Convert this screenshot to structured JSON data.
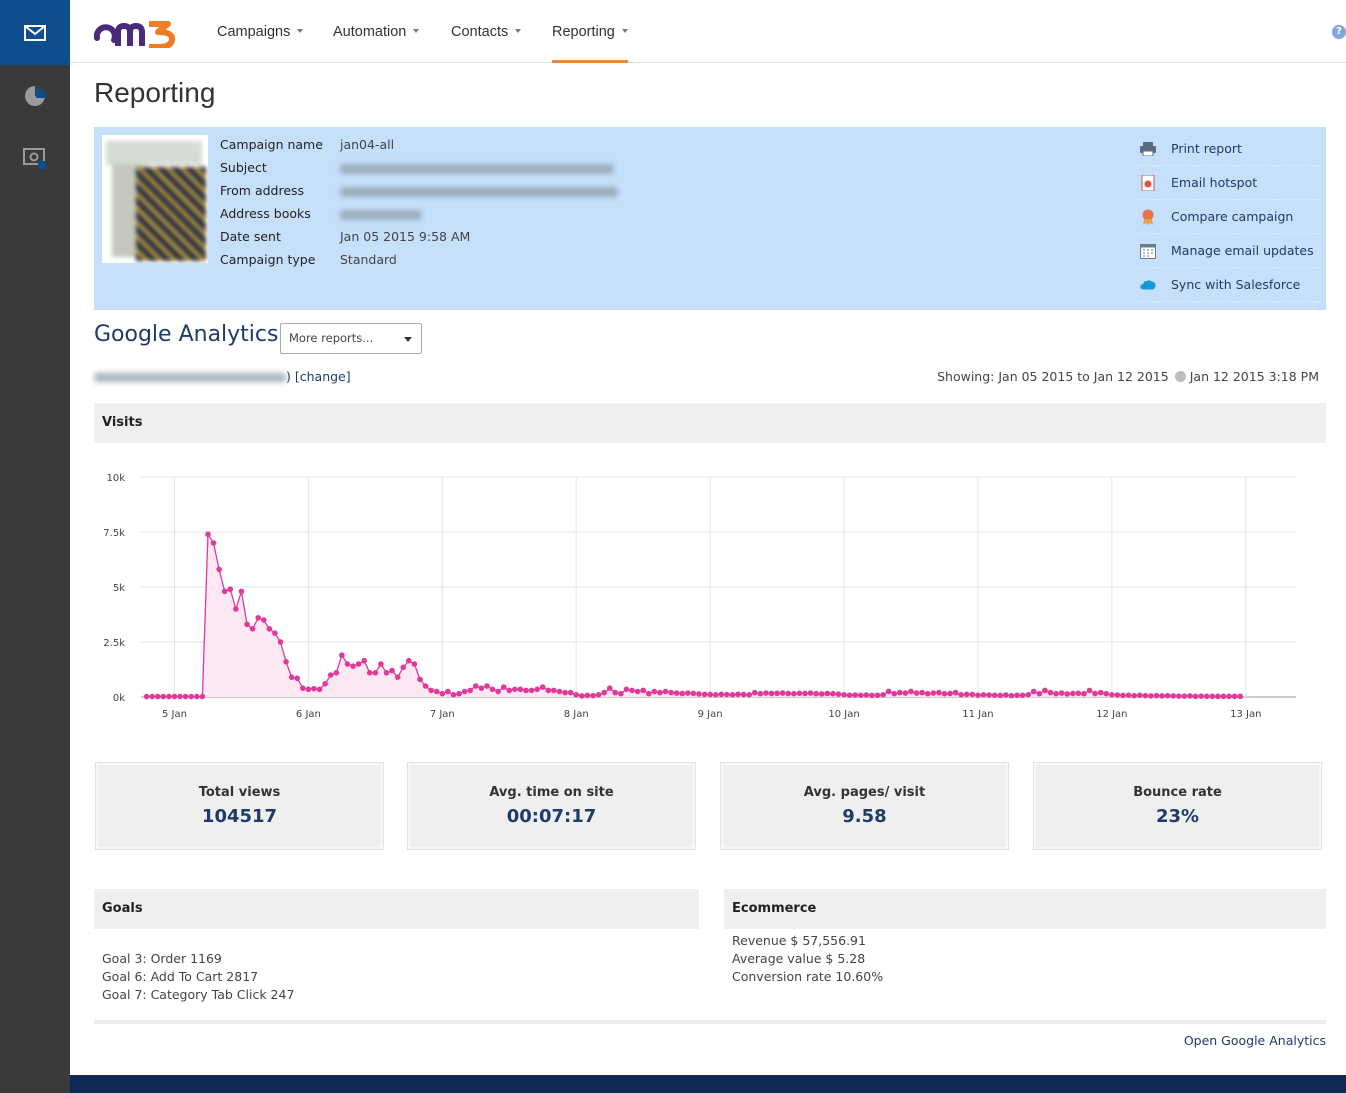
{
  "nav": {
    "logo_text": "om3",
    "items": [
      {
        "label": "Campaigns"
      },
      {
        "label": "Automation"
      },
      {
        "label": "Contacts"
      },
      {
        "label": "Reporting"
      }
    ],
    "active_item": "Reporting",
    "accent_color": "#e58a3a"
  },
  "sidebar": {
    "items": [
      {
        "icon": "envelope-icon",
        "active": true
      },
      {
        "icon": "pie-chart-icon",
        "active": false
      },
      {
        "icon": "monitor-search-icon",
        "active": false
      }
    ]
  },
  "page": {
    "title": "Reporting"
  },
  "campaign": {
    "rows": [
      {
        "label": "Campaign name",
        "value": "jan04-all"
      },
      {
        "label": "Subject",
        "value": ""
      },
      {
        "label": "From address",
        "value": ""
      },
      {
        "label": "Address books",
        "value": ""
      },
      {
        "label": "Date sent",
        "value": "Jan 05 2015 9:58 AM"
      },
      {
        "label": "Campaign type",
        "value": "Standard"
      }
    ],
    "actions": [
      {
        "label": "Print report",
        "icon": "printer-icon"
      },
      {
        "label": "Email hotspot",
        "icon": "hotspot-icon"
      },
      {
        "label": "Compare campaign",
        "icon": "ribbon-icon"
      },
      {
        "label": "Manage email updates",
        "icon": "calendar-icon"
      },
      {
        "label": "Sync with Salesforce",
        "icon": "salesforce-cloud-icon"
      }
    ]
  },
  "ga": {
    "title": "Google Analytics",
    "more_reports": "More reports...",
    "profile_suffix": ") ",
    "change_link": "[change]",
    "showing": "Showing: Jan 05 2015 to Jan 12 2015",
    "updated": "Jan 12 2015 3:18 PM"
  },
  "visits": {
    "title": "Visits"
  },
  "chart_data": {
    "type": "area",
    "title": "",
    "xlabel": "",
    "ylabel": "",
    "ylim": [
      0,
      10000
    ],
    "y_ticks": [
      {
        "value": 0,
        "label": "0k"
      },
      {
        "value": 2500,
        "label": "2.5k"
      },
      {
        "value": 5000,
        "label": "5k"
      },
      {
        "value": 7500,
        "label": "7.5k"
      },
      {
        "value": 10000,
        "label": "10k"
      }
    ],
    "x_ticks": [
      "5 Jan",
      "6 Jan",
      "7 Jan",
      "8 Jan",
      "9 Jan",
      "10 Jan",
      "11 Jan",
      "12 Jan",
      "13 Jan"
    ],
    "x_unit": "hours since 5 Jan 00:00",
    "xlim": [
      -6,
      201
    ],
    "grid": true,
    "color": "#e0399a",
    "fill": "#fbe8f3",
    "series": [
      {
        "values": [
          [
            -5,
            20
          ],
          [
            -4,
            20
          ],
          [
            -3,
            20
          ],
          [
            -2,
            20
          ],
          [
            -1,
            20
          ],
          [
            0,
            20
          ],
          [
            1,
            20
          ],
          [
            2,
            20
          ],
          [
            3,
            20
          ],
          [
            4,
            20
          ],
          [
            5,
            20
          ],
          [
            6,
            7400
          ],
          [
            7,
            7000
          ],
          [
            8,
            5800
          ],
          [
            9,
            4800
          ],
          [
            10,
            4900
          ],
          [
            11,
            4000
          ],
          [
            12,
            4800
          ],
          [
            13,
            3300
          ],
          [
            14,
            3100
          ],
          [
            15,
            3600
          ],
          [
            16,
            3500
          ],
          [
            17,
            3100
          ],
          [
            18,
            2900
          ],
          [
            19,
            2500
          ],
          [
            20,
            1600
          ],
          [
            21,
            900
          ],
          [
            22,
            850
          ],
          [
            23,
            400
          ],
          [
            24,
            350
          ],
          [
            25,
            380
          ],
          [
            26,
            350
          ],
          [
            27,
            600
          ],
          [
            28,
            1000
          ],
          [
            29,
            1100
          ],
          [
            30,
            1900
          ],
          [
            31,
            1500
          ],
          [
            32,
            1400
          ],
          [
            33,
            1500
          ],
          [
            34,
            1650
          ],
          [
            35,
            1100
          ],
          [
            36,
            1100
          ],
          [
            37,
            1500
          ],
          [
            38,
            1100
          ],
          [
            39,
            1200
          ],
          [
            40,
            900
          ],
          [
            41,
            1350
          ],
          [
            42,
            1650
          ],
          [
            43,
            1500
          ],
          [
            44,
            800
          ],
          [
            45,
            500
          ],
          [
            46,
            300
          ],
          [
            47,
            250
          ],
          [
            48,
            150
          ],
          [
            49,
            250
          ],
          [
            50,
            100
          ],
          [
            51,
            150
          ],
          [
            52,
            250
          ],
          [
            53,
            300
          ],
          [
            54,
            500
          ],
          [
            55,
            400
          ],
          [
            56,
            500
          ],
          [
            57,
            350
          ],
          [
            58,
            250
          ],
          [
            59,
            450
          ],
          [
            60,
            300
          ],
          [
            61,
            350
          ],
          [
            62,
            350
          ],
          [
            63,
            300
          ],
          [
            64,
            300
          ],
          [
            65,
            350
          ],
          [
            66,
            450
          ],
          [
            67,
            300
          ],
          [
            68,
            300
          ],
          [
            69,
            250
          ],
          [
            70,
            200
          ],
          [
            71,
            200
          ],
          [
            72,
            100
          ],
          [
            73,
            50
          ],
          [
            74,
            70
          ],
          [
            75,
            60
          ],
          [
            76,
            100
          ],
          [
            77,
            200
          ],
          [
            78,
            400
          ],
          [
            79,
            200
          ],
          [
            80,
            150
          ],
          [
            81,
            350
          ],
          [
            82,
            300
          ],
          [
            83,
            250
          ],
          [
            84,
            300
          ],
          [
            85,
            150
          ],
          [
            86,
            250
          ],
          [
            87,
            200
          ],
          [
            88,
            250
          ],
          [
            89,
            200
          ],
          [
            90,
            180
          ],
          [
            91,
            160
          ],
          [
            92,
            180
          ],
          [
            93,
            160
          ],
          [
            94,
            140
          ],
          [
            95,
            120
          ],
          [
            96,
            110
          ],
          [
            97,
            100
          ],
          [
            98,
            120
          ],
          [
            99,
            110
          ],
          [
            100,
            100
          ],
          [
            101,
            120
          ],
          [
            102,
            110
          ],
          [
            103,
            100
          ],
          [
            104,
            200
          ],
          [
            105,
            150
          ],
          [
            106,
            180
          ],
          [
            107,
            160
          ],
          [
            108,
            170
          ],
          [
            109,
            180
          ],
          [
            110,
            160
          ],
          [
            111,
            150
          ],
          [
            112,
            170
          ],
          [
            113,
            160
          ],
          [
            114,
            180
          ],
          [
            115,
            150
          ],
          [
            116,
            140
          ],
          [
            117,
            160
          ],
          [
            118,
            150
          ],
          [
            119,
            130
          ],
          [
            120,
            100
          ],
          [
            121,
            80
          ],
          [
            122,
            90
          ],
          [
            123,
            80
          ],
          [
            124,
            90
          ],
          [
            125,
            70
          ],
          [
            126,
            80
          ],
          [
            127,
            100
          ],
          [
            128,
            250
          ],
          [
            129,
            150
          ],
          [
            130,
            200
          ],
          [
            131,
            180
          ],
          [
            132,
            250
          ],
          [
            133,
            180
          ],
          [
            134,
            200
          ],
          [
            135,
            150
          ],
          [
            136,
            180
          ],
          [
            137,
            200
          ],
          [
            138,
            150
          ],
          [
            139,
            160
          ],
          [
            140,
            200
          ],
          [
            141,
            100
          ],
          [
            142,
            120
          ],
          [
            143,
            110
          ],
          [
            144,
            80
          ],
          [
            145,
            100
          ],
          [
            146,
            90
          ],
          [
            147,
            80
          ],
          [
            148,
            70
          ],
          [
            149,
            90
          ],
          [
            150,
            60
          ],
          [
            151,
            80
          ],
          [
            152,
            80
          ],
          [
            153,
            100
          ],
          [
            154,
            250
          ],
          [
            155,
            150
          ],
          [
            156,
            300
          ],
          [
            157,
            200
          ],
          [
            158,
            150
          ],
          [
            159,
            180
          ],
          [
            160,
            140
          ],
          [
            161,
            160
          ],
          [
            162,
            170
          ],
          [
            163,
            150
          ],
          [
            164,
            300
          ],
          [
            165,
            160
          ],
          [
            166,
            200
          ],
          [
            167,
            150
          ],
          [
            168,
            100
          ],
          [
            169,
            90
          ],
          [
            170,
            70
          ],
          [
            171,
            80
          ],
          [
            172,
            60
          ],
          [
            173,
            80
          ],
          [
            174,
            60
          ],
          [
            175,
            50
          ],
          [
            176,
            60
          ],
          [
            177,
            50
          ],
          [
            178,
            60
          ],
          [
            179,
            50
          ],
          [
            180,
            40
          ],
          [
            181,
            40
          ],
          [
            182,
            50
          ],
          [
            183,
            30
          ],
          [
            184,
            40
          ],
          [
            185,
            30
          ],
          [
            186,
            30
          ],
          [
            187,
            30
          ],
          [
            188,
            30
          ],
          [
            189,
            30
          ],
          [
            190,
            30
          ],
          [
            191,
            30
          ]
        ]
      }
    ]
  },
  "metrics": [
    {
      "label": "Total views",
      "value": "104517"
    },
    {
      "label": "Avg. time on site",
      "value": "00:07:17"
    },
    {
      "label": "Avg. pages/ visit",
      "value": "9.58"
    },
    {
      "label": "Bounce rate",
      "value": "23%"
    }
  ],
  "goals": {
    "title": "Goals",
    "lines": [
      "Goal 3: Order 1169",
      "Goal 6: Add To Cart 2817",
      "Goal 7: Category Tab Click 247"
    ]
  },
  "ecommerce": {
    "title": "Ecommerce",
    "lines": [
      "Revenue $ 57,556.91",
      "Average value $ 5.28",
      "Conversion rate 10.60%"
    ]
  },
  "footer": {
    "open_ga": "Open Google Analytics"
  }
}
